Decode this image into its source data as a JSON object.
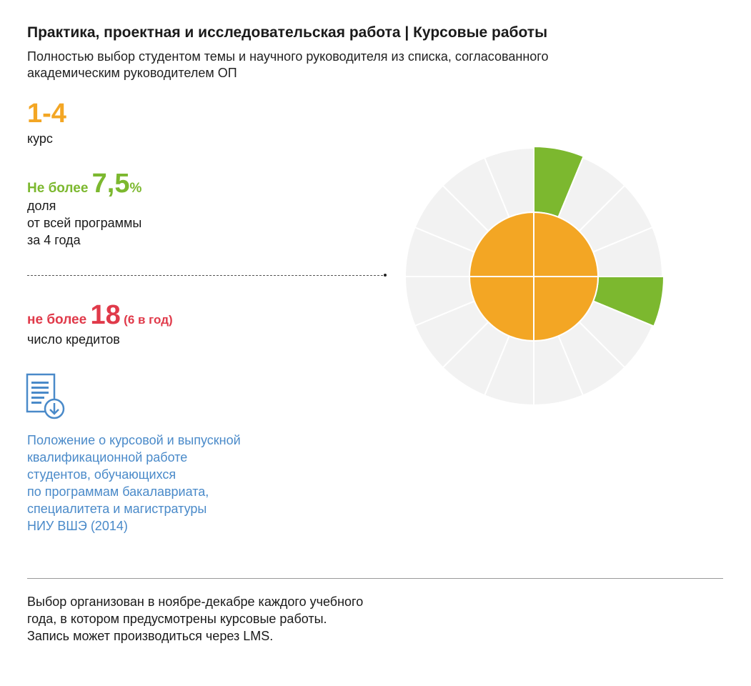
{
  "header": {
    "title": "Практика, проектная и исследовательская работа | Курсовые работы",
    "subtitle": "Полностью выбор студентом темы и научного руководителя из списка, согласованного академическим руководителем ОП"
  },
  "course": {
    "range": "1-4",
    "label": "курс"
  },
  "share": {
    "prefix": "Не более ",
    "value": "7,5",
    "unit": "%",
    "label_lines": [
      "доля",
      "от всей программы",
      "за 4 года"
    ]
  },
  "credits": {
    "prefix": "не более ",
    "value": "18",
    "note": "(6 в год)",
    "label": "число кредитов"
  },
  "document": {
    "icon": "document-download-icon",
    "link_lines": [
      "Положение о курсовой и выпускной",
      "квалификационной работе",
      "студентов, обучающихся",
      "по программам бакалавриата,",
      "специалитета и магистратуры",
      "НИУ ВШЭ (2014)"
    ]
  },
  "footnote": "Выбор организован в ноябре-декабре каждого учебного года, в котором предусмотрены курсовые работы. Запись может производиться через LMS.",
  "colors": {
    "orange": "#f3a624",
    "green": "#7cb82f",
    "red": "#e03a4a",
    "link_blue": "#4a8ac9",
    "empty_segment": "#f2f2f2"
  },
  "chart_data": {
    "type": "pie",
    "description_kind": "radial polar chart",
    "inner_disc": {
      "quadrants": 4,
      "color": "#f3a624"
    },
    "outer_ring": {
      "segments": 16,
      "highlighted_segments": [
        0,
        4
      ],
      "highlight_color": "#7cb82f",
      "base_color": "#f2f2f2"
    }
  }
}
